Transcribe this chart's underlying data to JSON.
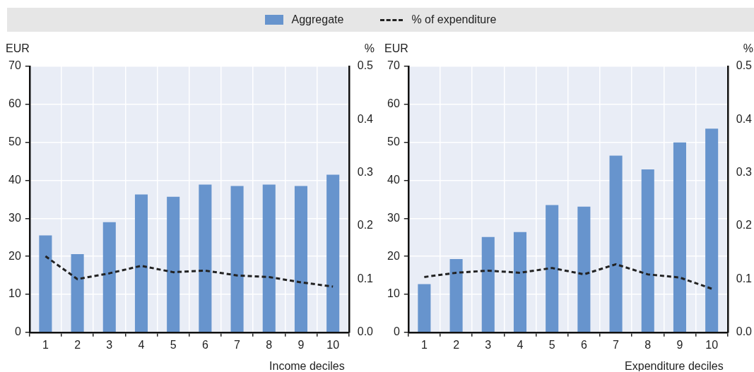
{
  "chart_data": [
    {
      "type": "bar",
      "xlabel": "Income deciles",
      "ylabel": "EUR",
      "y2label": "%",
      "categories": [
        "1",
        "2",
        "3",
        "4",
        "5",
        "6",
        "7",
        "8",
        "9",
        "10"
      ],
      "series": [
        {
          "name": "Aggregate",
          "color": "#6794cd",
          "values": [
            25.5,
            20.6,
            29,
            36.3,
            35.7,
            38.9,
            38.5,
            38.9,
            38.5,
            41.5
          ]
        },
        {
          "name": "% of expenditure",
          "type": "line",
          "axis": "y2",
          "color": "#222222",
          "line_style": "dashed",
          "marker": "none",
          "values": [
            0.143,
            0.1,
            0.111,
            0.125,
            0.113,
            0.116,
            0.107,
            0.104,
            0.094,
            0.086
          ]
        }
      ],
      "ylim": [
        0,
        70
      ],
      "yticks": [
        0,
        10,
        20,
        30,
        40,
        50,
        60,
        70
      ],
      "y2lim": [
        0,
        0.5
      ],
      "y2ticks": [
        {
          "value": 0,
          "label": "0.0"
        },
        0.1,
        0.2,
        0.3,
        0.4,
        0.5
      ],
      "grid": true,
      "legend": "top"
    },
    {
      "type": "bar",
      "xlabel": "Expenditure deciles",
      "ylabel": "EUR",
      "y2label": "%",
      "categories": [
        "1",
        "2",
        "3",
        "4",
        "5",
        "6",
        "7",
        "8",
        "9",
        "10"
      ],
      "series": [
        {
          "color": "#6794cd",
          "values": [
            12.7,
            19.3,
            25.1,
            26.4,
            33.5,
            33.1,
            46.5,
            42.9,
            50,
            53.6
          ]
        },
        {
          "type": "line",
          "axis": "y2",
          "color": "#222222",
          "line_style": "dashed",
          "marker": "none",
          "values": [
            0.104,
            0.112,
            0.116,
            0.112,
            0.121,
            0.109,
            0.128,
            0.109,
            0.103,
            0.082
          ]
        }
      ],
      "ylim": [
        0,
        70
      ],
      "yticks": [
        0,
        10,
        20,
        30,
        40,
        50,
        60,
        70
      ],
      "y2lim": [
        0,
        0.5
      ],
      "y2ticks": [
        {
          "value": 0,
          "label": "0.0"
        },
        0.1,
        0.2,
        0.3,
        0.4,
        0.5
      ],
      "grid": true
    }
  ]
}
